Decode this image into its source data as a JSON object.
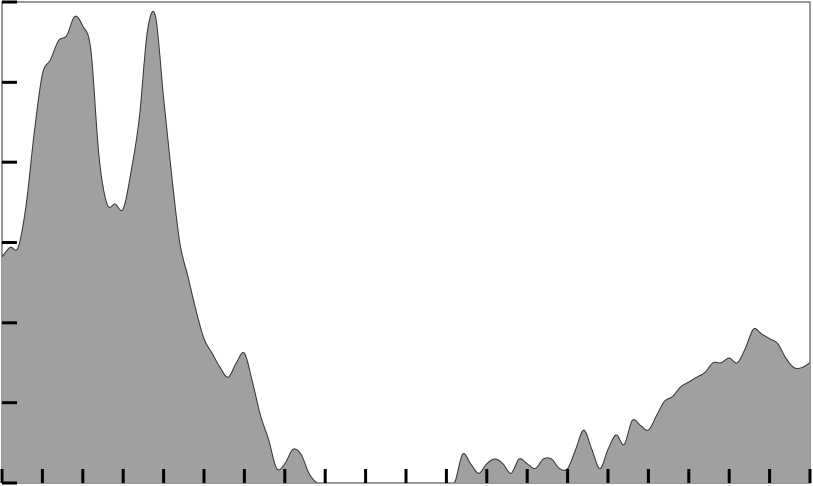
{
  "chart_data": {
    "type": "area",
    "title": "",
    "xlabel": "",
    "ylabel": "",
    "xlim": [
      0,
      100
    ],
    "ylim": [
      0,
      100
    ],
    "x_ticks": [
      0,
      5,
      10,
      15,
      20,
      25,
      30,
      35,
      40,
      45,
      50,
      55,
      60,
      65,
      70,
      75,
      80,
      85,
      90,
      95,
      100
    ],
    "y_ticks": [
      0,
      16.7,
      33.3,
      50,
      66.7,
      83.3,
      100
    ],
    "grid": false,
    "fill_color": "#a0a0a0",
    "line_color": "#333333",
    "tick_color": "#000000",
    "series": [
      {
        "x": [
          0,
          1,
          2,
          3,
          4,
          5,
          6,
          7,
          8,
          9,
          10,
          11,
          12,
          13,
          14,
          15,
          16,
          17,
          18,
          19,
          20,
          21,
          22,
          23,
          24,
          25,
          26,
          27,
          28,
          29,
          30,
          31,
          32,
          33,
          34,
          35,
          36,
          37,
          38,
          39,
          40,
          41,
          42,
          43,
          44,
          45,
          46,
          47,
          48,
          49,
          50,
          51,
          52,
          53,
          54,
          55,
          56,
          57,
          58,
          59,
          60,
          61,
          62,
          63,
          64,
          65,
          66,
          67,
          68,
          69,
          70,
          71,
          72,
          73,
          74,
          75,
          76,
          77,
          78,
          79,
          80,
          81,
          82,
          83,
          84,
          85,
          86,
          87,
          88,
          89,
          90,
          91,
          92,
          93,
          94,
          95,
          96,
          97,
          98,
          99,
          100
        ],
        "values": [
          47,
          49,
          49,
          58,
          73,
          85,
          88,
          92,
          93,
          97,
          95,
          90,
          68,
          58,
          58,
          57,
          65,
          76,
          94,
          97,
          80,
          64,
          50,
          43,
          36,
          30,
          27,
          24,
          22,
          25,
          27,
          21,
          14,
          9,
          3,
          4,
          7,
          6,
          2,
          0,
          0,
          0,
          0,
          0,
          0,
          0,
          0,
          0,
          0,
          0,
          0,
          0,
          0,
          0,
          0,
          0,
          0,
          6,
          4,
          2,
          4,
          5,
          4,
          2,
          5,
          4,
          3,
          5,
          5,
          3,
          3,
          7,
          11,
          7,
          3,
          7,
          10,
          8,
          13,
          12,
          11,
          14,
          17,
          18,
          20,
          21,
          22,
          23,
          25,
          25,
          26,
          25,
          28,
          32,
          31,
          30,
          29,
          26,
          24,
          24,
          25
        ]
      }
    ]
  }
}
